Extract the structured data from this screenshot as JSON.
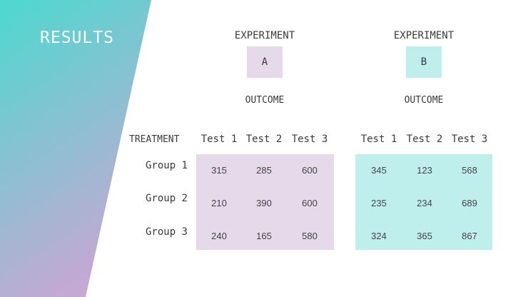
{
  "slide": {
    "title": "RESULTS"
  },
  "colors": {
    "gradient_top": "#4dd9d0",
    "gradient_bottom": "#c3a9d3",
    "experiment_a": "#e5d9ea",
    "experiment_b": "#bfefec"
  },
  "row_header": "TREATMENT",
  "groups": [
    "Group 1",
    "Group 2",
    "Group 3"
  ],
  "experiments": [
    {
      "label": "EXPERIMENT",
      "letter": "A",
      "outcome_label": "OUTCOME",
      "tests": [
        "Test 1",
        "Test 2",
        "Test 3"
      ],
      "rows": [
        [
          "315",
          "285",
          "600"
        ],
        [
          "210",
          "390",
          "600"
        ],
        [
          "240",
          "165",
          "580"
        ]
      ]
    },
    {
      "label": "EXPERIMENT",
      "letter": "B",
      "outcome_label": "OUTCOME",
      "tests": [
        "Test 1",
        "Test 2",
        "Test 3"
      ],
      "rows": [
        [
          "345",
          "123",
          "568"
        ],
        [
          "235",
          "234",
          "689"
        ],
        [
          "324",
          "365",
          "867"
        ]
      ]
    }
  ]
}
